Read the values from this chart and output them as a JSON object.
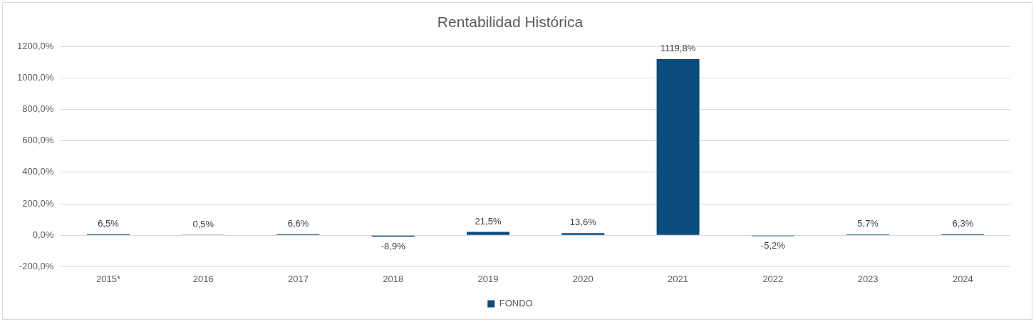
{
  "chart_data": {
    "type": "bar",
    "title": "Rentabilidad Histórica",
    "categories": [
      "2015*",
      "2016",
      "2017",
      "2018",
      "2019",
      "2020",
      "2021",
      "2022",
      "2023",
      "2024"
    ],
    "series": [
      {
        "name": "FONDO",
        "color": "#0b4c7f",
        "values": [
          6.5,
          0.5,
          6.6,
          -8.9,
          21.5,
          13.6,
          1119.8,
          -5.2,
          5.7,
          6.3
        ],
        "value_labels": [
          "6,5%",
          "0,5%",
          "6,6%",
          "-8,9%",
          "21,5%",
          "13,6%",
          "1119,8%",
          "-5,2%",
          "5,7%",
          "6,3%"
        ]
      }
    ],
    "ylim": [
      -200,
      1200
    ],
    "yticks": [
      {
        "value": -200,
        "label": "-200,0%"
      },
      {
        "value": 0,
        "label": "0,0%"
      },
      {
        "value": 200,
        "label": "200,0%"
      },
      {
        "value": 400,
        "label": "400,0%"
      },
      {
        "value": 600,
        "label": "600,0%"
      },
      {
        "value": 800,
        "label": "800,0%"
      },
      {
        "value": 1000,
        "label": "1000,0%"
      },
      {
        "value": 1200,
        "label": "1200,0%"
      }
    ],
    "grid": "y",
    "legend": "bottom"
  }
}
